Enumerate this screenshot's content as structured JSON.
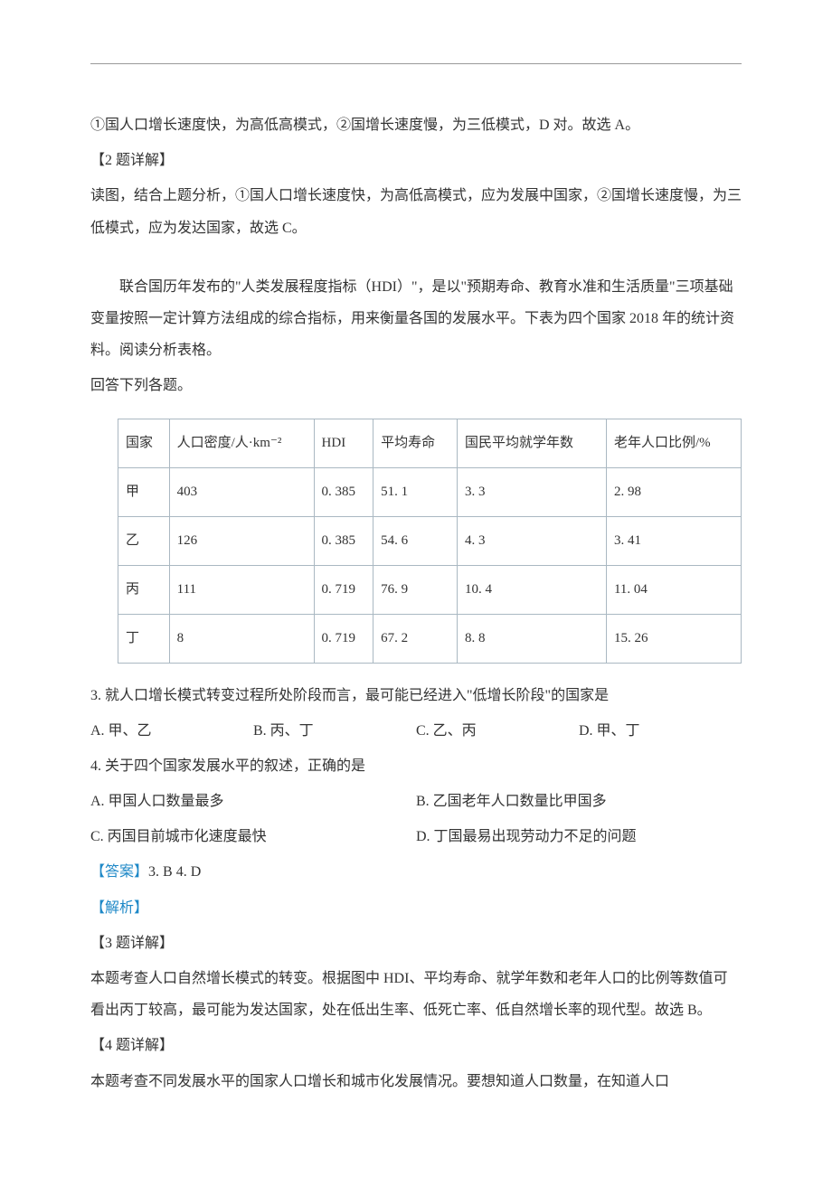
{
  "pre_text": {
    "p1": "①国人口增长速度快，为高低高模式，②国增长速度慢，为三低模式，D 对。故选 A。",
    "p2_label": "【2 题详解】",
    "p3": "读图，结合上题分析，①国人口增长速度快，为高低高模式，应为发展中国家，②国增长速度慢，为三低模式，应为发达国家，故选 C。"
  },
  "intro": {
    "p1": "联合国历年发布的\"人类发展程度指标（HDI）\"，是以\"预期寿命、教育水准和生活质量\"三项基础变量按照一定计算方法组成的综合指标，用来衡量各国的发展水平。下表为四个国家 2018 年的统计资料。阅读分析表格。",
    "p2": "回答下列各题。"
  },
  "table": {
    "columns": [
      "国家",
      "人口密度/人·km⁻²",
      "HDI",
      "平均寿命",
      "国民平均就学年数",
      "老年人口比例/%"
    ],
    "rows": [
      [
        "甲",
        "403",
        "0. 385",
        "51. 1",
        "3. 3",
        "2. 98"
      ],
      [
        "乙",
        "126",
        "0. 385",
        "54. 6",
        "4. 3",
        "3. 41"
      ],
      [
        "丙",
        "111",
        "0. 719",
        "76. 9",
        "10. 4",
        "11. 04"
      ],
      [
        "丁",
        "8",
        "0. 719",
        "67. 2",
        "8. 8",
        "15. 26"
      ]
    ],
    "border_color": "#aab8c2",
    "cell_padding": "10px 8px",
    "font_size": 15
  },
  "q3": {
    "stem": "3. 就人口增长模式转变过程所处阶段而言，最可能已经进入\"低增长阶段\"的国家是",
    "opts": {
      "A": "A. 甲、乙",
      "B": "B. 丙、丁",
      "C": "C. 乙、丙",
      "D": "D. 甲、丁"
    }
  },
  "q4": {
    "stem": "4. 关于四个国家发展水平的叙述，正确的是",
    "opts": {
      "A": "A. 甲国人口数量最多",
      "B": "B. 乙国老年人口数量比甲国多",
      "C": "C. 丙国目前城市化速度最快",
      "D": "D. 丁国最易出现劳动力不足的问题"
    }
  },
  "answer": {
    "label": "【答案】",
    "text": "3. B    4. D"
  },
  "explain": {
    "label": "【解析】",
    "q3_title": "【3 题详解】",
    "q3_body": "本题考查人口自然增长模式的转变。根据图中 HDI、平均寿命、就学年数和老年人口的比例等数值可看出丙丁较高，最可能为发达国家，处在低出生率、低死亡率、低自然增长率的现代型。故选 B。",
    "q4_title": "【4 题详解】",
    "q4_body": "本题考查不同发展水平的国家人口增长和城市化发展情况。要想知道人口数量，在知道人口"
  },
  "colors": {
    "text": "#333333",
    "highlight": "#1e88c7",
    "border": "#aab8c2",
    "top_line": "#999999",
    "background": "#ffffff"
  }
}
